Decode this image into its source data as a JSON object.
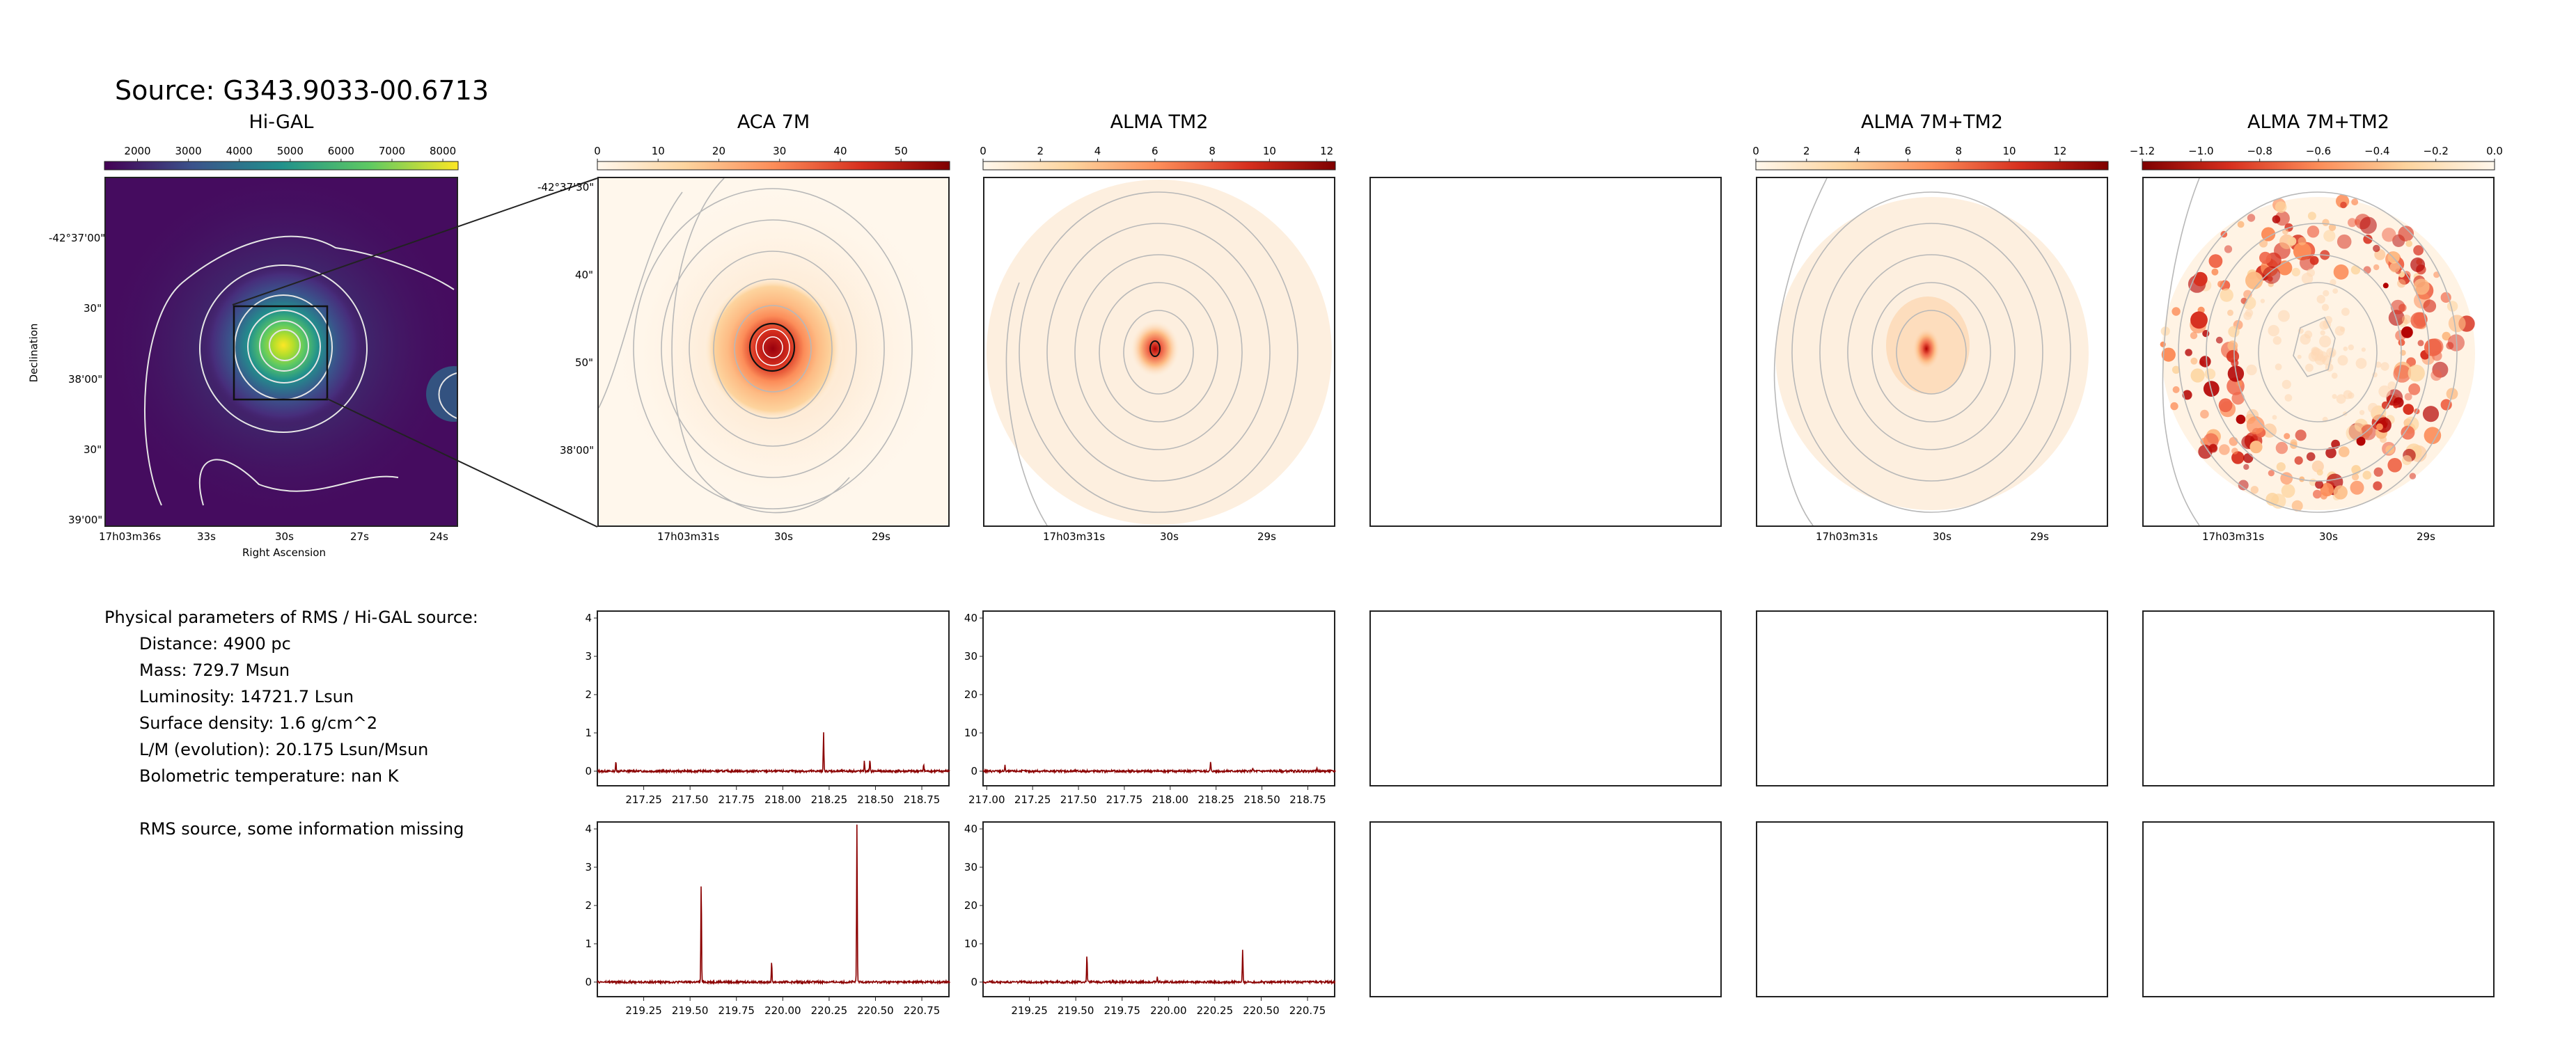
{
  "page_title": "Source: G343.9033-00.6713",
  "panels": [
    {
      "title": "Hi-GAL"
    },
    {
      "title": "ACA 7M"
    },
    {
      "title": "ALMA TM2"
    },
    {
      "title": ""
    },
    {
      "title": "ALMA 7M+TM2"
    },
    {
      "title": "ALMA 7M+TM2"
    }
  ],
  "params": {
    "header": "Physical parameters of RMS / Hi-GAL source:",
    "lines": [
      "Distance: 4900 pc",
      "Mass: 729.7 Msun",
      "Luminosity: 14721.7 Lsun",
      "Surface density: 1.6 g/cm^2",
      "L/M (evolution): 20.175 Lsun/Msun",
      "Bolometric temperature: nan K"
    ],
    "note": "RMS source, some information missing"
  },
  "higal_axes": {
    "xlabel": "Right Ascension",
    "ylabel": "Declination",
    "xticks": [
      "17h03m36s",
      "33s",
      "30s",
      "27s",
      "24s"
    ],
    "yticks": [
      "-42°37'00\"",
      "30\"",
      "38'00\"",
      "30\"",
      "39'00\""
    ]
  },
  "map_axes": {
    "xticks": [
      "17h03m31s",
      "30s",
      "29s"
    ],
    "yticks_aca": [
      "-42°37'30\"",
      "40\"",
      "50\"",
      "38'00\""
    ]
  },
  "colorbars": [
    {
      "panel": "Hi-GAL",
      "ticks": [
        "2000",
        "3000",
        "4000",
        "5000",
        "6000",
        "7000",
        "8000"
      ],
      "range": [
        1350,
        8300
      ],
      "cmap": "viridis"
    },
    {
      "panel": "ACA 7M",
      "ticks": [
        "0",
        "10",
        "20",
        "30",
        "40",
        "50"
      ],
      "range": [
        0,
        58
      ],
      "cmap": "OrRd"
    },
    {
      "panel": "ALMA TM2",
      "ticks": [
        "0",
        "2",
        "4",
        "6",
        "8",
        "10",
        "12"
      ],
      "range": [
        0,
        12.3
      ],
      "cmap": "OrRd"
    },
    {
      "panel": "ALMA 7M+TM2",
      "ticks": [
        "0",
        "2",
        "4",
        "6",
        "8",
        "10",
        "12"
      ],
      "range": [
        0,
        13.9
      ],
      "cmap": "OrRd"
    },
    {
      "panel": "ALMA 7M+TM2 (negative)",
      "ticks": [
        "−1.2",
        "−1.0",
        "−0.8",
        "−0.6",
        "−0.4",
        "−0.2",
        "0.0"
      ],
      "range": [
        -1.2,
        0.0
      ],
      "cmap": "OrRd_r"
    }
  ],
  "chart_data": [
    {
      "type": "line",
      "panel": "ACA 7M spectrum, window 1",
      "xticks": [
        "217.25",
        "217.50",
        "217.75",
        "218.00",
        "218.25",
        "218.50",
        "218.75"
      ],
      "xlim": [
        217.0,
        218.9
      ],
      "yticks": [
        "0",
        "1",
        "2",
        "3",
        "4"
      ],
      "ylim": [
        -0.4,
        4.2
      ],
      "color": "#8b0000",
      "peaks": [
        [
          217.1,
          0.25
        ],
        [
          218.22,
          1.0
        ],
        [
          218.44,
          0.25
        ],
        [
          218.47,
          0.28
        ],
        [
          218.76,
          0.2
        ]
      ]
    },
    {
      "type": "line",
      "panel": "ALMA TM2 spectrum, window 1",
      "xticks": [
        "217.00",
        "217.25",
        "217.50",
        "217.75",
        "218.00",
        "218.25",
        "218.50",
        "218.75"
      ],
      "xlim": [
        216.98,
        218.9
      ],
      "yticks": [
        "0",
        "10",
        "20",
        "30",
        "40"
      ],
      "ylim": [
        -4,
        42
      ],
      "color": "#8b0000",
      "peaks": [
        [
          217.1,
          1.5
        ],
        [
          218.22,
          2.5
        ],
        [
          218.45,
          1.0
        ],
        [
          218.8,
          0.8
        ]
      ]
    },
    {
      "type": "line",
      "panel": "ACA 7M spectrum, window 2",
      "xticks": [
        "219.25",
        "219.50",
        "219.75",
        "220.00",
        "220.25",
        "220.50",
        "220.75"
      ],
      "xlim": [
        219.0,
        220.9
      ],
      "yticks": [
        "0",
        "1",
        "2",
        "3",
        "4"
      ],
      "ylim": [
        -0.4,
        4.2
      ],
      "color": "#8b0000",
      "peaks": [
        [
          219.56,
          2.6
        ],
        [
          219.94,
          0.5
        ],
        [
          220.4,
          4.2
        ]
      ]
    },
    {
      "type": "line",
      "panel": "ALMA TM2 spectrum, window 2",
      "xticks": [
        "219.25",
        "219.50",
        "219.75",
        "220.00",
        "220.25",
        "220.50",
        "220.75"
      ],
      "xlim": [
        219.0,
        220.9
      ],
      "yticks": [
        "0",
        "10",
        "20",
        "30",
        "40"
      ],
      "ylim": [
        -4,
        42
      ],
      "color": "#8b0000",
      "peaks": [
        [
          219.56,
          7.0
        ],
        [
          219.94,
          1.2
        ],
        [
          220.4,
          8.5
        ]
      ]
    }
  ]
}
